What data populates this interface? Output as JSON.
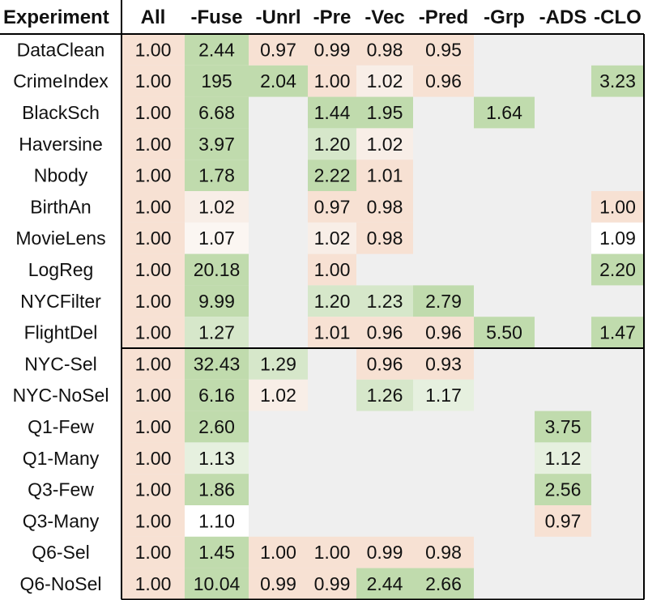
{
  "chart_data": {
    "type": "table",
    "columns": [
      "Experiment",
      "All",
      "-Fuse",
      "-Unrl",
      "-Pre",
      "-Vec",
      "-Pred",
      "-Grp",
      "-ADS",
      "-CLO"
    ],
    "groups": [
      {
        "rows": [
          {
            "label": "DataClean",
            "values": [
              "1.00",
              "2.44",
              "0.97",
              "0.99",
              "0.98",
              "0.95",
              null,
              null,
              null
            ]
          },
          {
            "label": "CrimeIndex",
            "values": [
              "1.00",
              "195",
              "2.04",
              "1.00",
              "1.02",
              "0.96",
              null,
              null,
              "3.23"
            ]
          },
          {
            "label": "BlackSch",
            "values": [
              "1.00",
              "6.68",
              null,
              "1.44",
              "1.95",
              null,
              "1.64",
              null,
              null
            ]
          },
          {
            "label": "Haversine",
            "values": [
              "1.00",
              "3.97",
              null,
              "1.20",
              "1.02",
              null,
              null,
              null,
              null
            ]
          },
          {
            "label": "Nbody",
            "values": [
              "1.00",
              "1.78",
              null,
              "2.22",
              "1.01",
              null,
              null,
              null,
              null
            ]
          },
          {
            "label": "BirthAn",
            "values": [
              "1.00",
              "1.02",
              null,
              "0.97",
              "0.98",
              null,
              null,
              null,
              "1.00"
            ]
          },
          {
            "label": "MovieLens",
            "values": [
              "1.00",
              "1.07",
              null,
              "1.02",
              "0.98",
              null,
              null,
              null,
              "1.09"
            ]
          },
          {
            "label": "LogReg",
            "values": [
              "1.00",
              "20.18",
              null,
              "1.00",
              null,
              null,
              null,
              null,
              "2.20"
            ]
          },
          {
            "label": "NYCFilter",
            "values": [
              "1.00",
              "9.99",
              null,
              "1.20",
              "1.23",
              "2.79",
              null,
              null,
              null
            ]
          },
          {
            "label": "FlightDel",
            "values": [
              "1.00",
              "1.27",
              null,
              "1.01",
              "0.96",
              "0.96",
              "5.50",
              null,
              "1.47"
            ]
          }
        ]
      },
      {
        "rows": [
          {
            "label": "NYC-Sel",
            "values": [
              "1.00",
              "32.43",
              "1.29",
              null,
              "0.96",
              "0.93",
              null,
              null,
              null
            ]
          },
          {
            "label": "NYC-NoSel",
            "values": [
              "1.00",
              "6.16",
              "1.02",
              null,
              "1.26",
              "1.17",
              null,
              null,
              null
            ]
          },
          {
            "label": "Q1-Few",
            "values": [
              "1.00",
              "2.60",
              null,
              null,
              null,
              null,
              null,
              "3.75",
              null
            ]
          },
          {
            "label": "Q1-Many",
            "values": [
              "1.00",
              "1.13",
              null,
              null,
              null,
              null,
              null,
              "1.12",
              null
            ]
          },
          {
            "label": "Q3-Few",
            "values": [
              "1.00",
              "1.86",
              null,
              null,
              null,
              null,
              null,
              "2.56",
              null
            ]
          },
          {
            "label": "Q3-Many",
            "values": [
              "1.00",
              "1.10",
              null,
              null,
              null,
              null,
              null,
              "0.97",
              null
            ]
          },
          {
            "label": "Q6-Sel",
            "values": [
              "1.00",
              "1.45",
              "1.00",
              "1.00",
              "0.99",
              "0.98",
              null,
              null,
              null
            ]
          },
          {
            "label": "Q6-NoSel",
            "values": [
              "1.00",
              "10.04",
              "0.99",
              "0.99",
              "2.44",
              "2.66",
              null,
              null,
              null
            ]
          }
        ]
      }
    ],
    "colors": {
      "empty": "#efefef",
      "neutral": "#f7e1d3",
      "low": "#f8eee7",
      "near": "#fbf6f2",
      "white": "#ffffff",
      "palegreen": "#e6f0df",
      "lightgreen": "#d6e7ca",
      "green": "#c0dbad",
      "grid": "#000000"
    }
  }
}
